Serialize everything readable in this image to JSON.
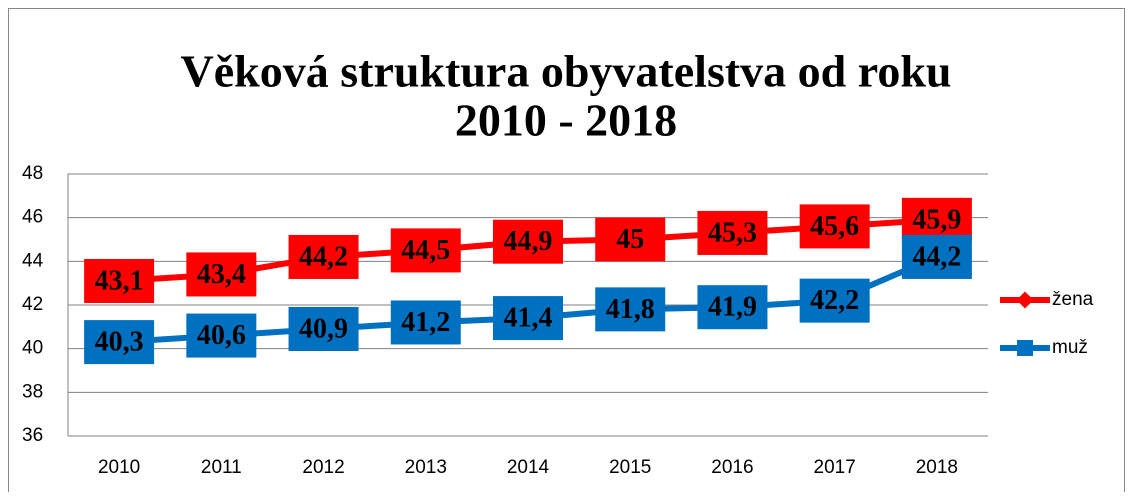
{
  "chart_data": {
    "type": "line",
    "title": "Věková struktura obyvatelstva od roku 2010 - 2018",
    "categories": [
      "2010",
      "2011",
      "2012",
      "2013",
      "2014",
      "2015",
      "2016",
      "2017",
      "2018"
    ],
    "series": [
      {
        "name": "žena",
        "color": "#ff0000",
        "marker": "diamond",
        "values": [
          43.1,
          43.4,
          44.2,
          44.5,
          44.9,
          45,
          45.3,
          45.6,
          45.9
        ],
        "value_labels": [
          "43,1",
          "43,4",
          "44,2",
          "44,5",
          "44,9",
          "45",
          "45,3",
          "45,6",
          "45,9"
        ]
      },
      {
        "name": "muž",
        "color": "#0070c0",
        "marker": "square",
        "values": [
          40.3,
          40.6,
          40.9,
          41.2,
          41.4,
          41.8,
          41.9,
          42.2,
          44.2
        ],
        "value_labels": [
          "40,3",
          "40,6",
          "40,9",
          "41,2",
          "41,4",
          "41,8",
          "41,9",
          "42,2",
          "44,2"
        ]
      }
    ],
    "ylim": [
      36,
      48
    ],
    "yticks": [
      36,
      38,
      40,
      42,
      44,
      46,
      48
    ],
    "grid": true,
    "legend": "right"
  }
}
